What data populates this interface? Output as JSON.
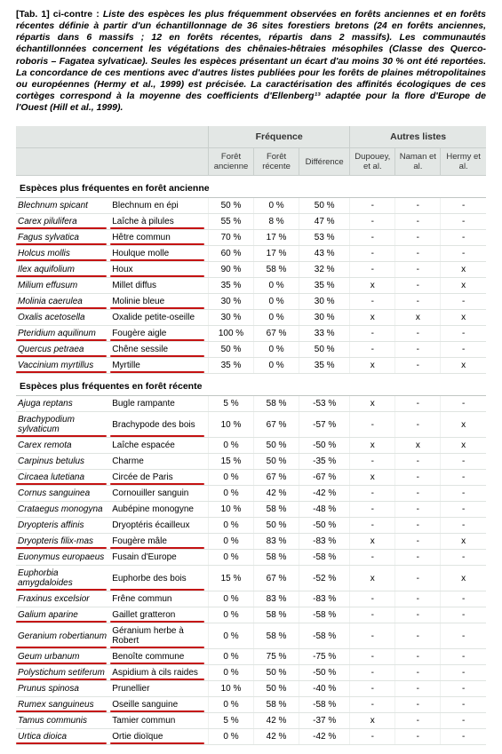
{
  "caption": {
    "lead": "[Tab. 1] ci-contre :",
    "body": "Liste des espèces les plus fréquemment observées en forêts anciennes et en forêts récentes définie à partir d'un échantillonnage de 36 sites forestiers bretons (24 en forêts anciennes, répartis dans 6 massifs ; 12 en forêts récentes, répartis dans 2 massifs). Les communautés échantillonnées concernent les végétations des chênaies-hêtraies mésophiles (Classe des Querco-roboris – Fagatea sylvaticae). Seules les espèces présentant un écart d'au moins 30 % ont été reportées. La concordance de ces mentions avec d'autres listes publiées pour les forêts de plaines métropolitaines ou européennes (Hermy et al., 1999) est précisée. La caractérisation des affinités écologiques de ces cortèges correspond à la moyenne des coefficients d'Ellenberg¹³ adaptée pour la flore d'Europe de l'Ouest (Hill et al., 1999)."
  },
  "headers": {
    "group_freq": "Fréquence",
    "group_lists": "Autres listes",
    "col_fa": "Forêt ancienne",
    "col_fr": "Forêt récente",
    "col_diff": "Différence",
    "col_dup": "Dupouey, et al.",
    "col_nam": "Naman et al.",
    "col_her": "Hermy et al."
  },
  "section1_title": "Espèces plus fréquentes en forêt ancienne",
  "section2_title": "Espèces plus fréquentes en forêt récente",
  "rows1": [
    {
      "latin": "Blechnum spicant",
      "vern": "Blechnum en épi",
      "fa": "50 %",
      "fr": "0 %",
      "diff": "50 %",
      "d": "-",
      "n": "-",
      "h": "-",
      "hl": false
    },
    {
      "latin": "Carex pilulifera",
      "vern": "Laîche à pilules",
      "fa": "55 %",
      "fr": "8 %",
      "diff": "47 %",
      "d": "-",
      "n": "-",
      "h": "-",
      "hl": true
    },
    {
      "latin": "Fagus sylvatica",
      "vern": "Hêtre commun",
      "fa": "70 %",
      "fr": "17 %",
      "diff": "53 %",
      "d": "-",
      "n": "-",
      "h": "-",
      "hl": true
    },
    {
      "latin": "Holcus mollis",
      "vern": "Houlque molle",
      "fa": "60 %",
      "fr": "17 %",
      "diff": "43 %",
      "d": "-",
      "n": "-",
      "h": "-",
      "hl": true
    },
    {
      "latin": "Ilex aquifolium",
      "vern": "Houx",
      "fa": "90 %",
      "fr": "58 %",
      "diff": "32 %",
      "d": "-",
      "n": "-",
      "h": "x",
      "hl": true
    },
    {
      "latin": "Milium effusum",
      "vern": "Millet diffus",
      "fa": "35 %",
      "fr": "0 %",
      "diff": "35 %",
      "d": "x",
      "n": "-",
      "h": "x",
      "hl": false
    },
    {
      "latin": "Molinia caerulea",
      "vern": "Molinie bleue",
      "fa": "30 %",
      "fr": "0 %",
      "diff": "30 %",
      "d": "-",
      "n": "-",
      "h": "-",
      "hl": true
    },
    {
      "latin": "Oxalis acetosella",
      "vern": "Oxalide petite-oseille",
      "fa": "30 %",
      "fr": "0 %",
      "diff": "30 %",
      "d": "x",
      "n": "x",
      "h": "x",
      "hl": false
    },
    {
      "latin": "Pteridium aquilinum",
      "vern": "Fougère aigle",
      "fa": "100 %",
      "fr": "67 %",
      "diff": "33 %",
      "d": "-",
      "n": "-",
      "h": "-",
      "hl": true
    },
    {
      "latin": "Quercus petraea",
      "vern": "Chêne sessile",
      "fa": "50 %",
      "fr": "0 %",
      "diff": "50 %",
      "d": "-",
      "n": "-",
      "h": "-",
      "hl": true
    },
    {
      "latin": "Vaccinium myrtillus",
      "vern": "Myrtille",
      "fa": "35 %",
      "fr": "0 %",
      "diff": "35 %",
      "d": "x",
      "n": "-",
      "h": "x",
      "hl": true
    }
  ],
  "rows2": [
    {
      "latin": "Ajuga reptans",
      "vern": "Bugle rampante",
      "fa": "5 %",
      "fr": "58 %",
      "diff": "-53 %",
      "d": "x",
      "n": "-",
      "h": "-",
      "hl": false
    },
    {
      "latin": "Brachypodium sylvaticum",
      "vern": "Brachypode des bois",
      "fa": "10 %",
      "fr": "67 %",
      "diff": "-57 %",
      "d": "-",
      "n": "-",
      "h": "x",
      "hl": true
    },
    {
      "latin": "Carex remota",
      "vern": "Laîche espacée",
      "fa": "0 %",
      "fr": "50 %",
      "diff": "-50 %",
      "d": "x",
      "n": "x",
      "h": "x",
      "hl": false
    },
    {
      "latin": "Carpinus betulus",
      "vern": "Charme",
      "fa": "15 %",
      "fr": "50 %",
      "diff": "-35 %",
      "d": "-",
      "n": "-",
      "h": "-",
      "hl": false
    },
    {
      "latin": "Circaea lutetiana",
      "vern": "Circée de Paris",
      "fa": "0 %",
      "fr": "67 %",
      "diff": "-67 %",
      "d": "x",
      "n": "-",
      "h": "-",
      "hl": true
    },
    {
      "latin": "Cornus sanguinea",
      "vern": "Cornouiller sanguin",
      "fa": "0 %",
      "fr": "42 %",
      "diff": "-42 %",
      "d": "-",
      "n": "-",
      "h": "-",
      "hl": false
    },
    {
      "latin": "Crataegus monogyna",
      "vern": "Aubépine monogyne",
      "fa": "10 %",
      "fr": "58 %",
      "diff": "-48 %",
      "d": "-",
      "n": "-",
      "h": "-",
      "hl": false
    },
    {
      "latin": "Dryopteris affinis",
      "vern": "Dryoptéris écailleux",
      "fa": "0 %",
      "fr": "50 %",
      "diff": "-50 %",
      "d": "-",
      "n": "-",
      "h": "-",
      "hl": false
    },
    {
      "latin": "Dryopteris filix-mas",
      "vern": "Fougère mâle",
      "fa": "0 %",
      "fr": "83 %",
      "diff": "-83 %",
      "d": "x",
      "n": "-",
      "h": "x",
      "hl": true
    },
    {
      "latin": "Euonymus europaeus",
      "vern": "Fusain d'Europe",
      "fa": "0 %",
      "fr": "58 %",
      "diff": "-58 %",
      "d": "-",
      "n": "-",
      "h": "-",
      "hl": false
    },
    {
      "latin": "Euphorbia amygdaloides",
      "vern": "Euphorbe des bois",
      "fa": "15 %",
      "fr": "67 %",
      "diff": "-52 %",
      "d": "x",
      "n": "-",
      "h": "x",
      "hl": true
    },
    {
      "latin": "Fraxinus excelsior",
      "vern": "Frêne commun",
      "fa": "0 %",
      "fr": "83 %",
      "diff": "-83 %",
      "d": "-",
      "n": "-",
      "h": "-",
      "hl": false
    },
    {
      "latin": "Galium aparine",
      "vern": "Gaillet gratteron",
      "fa": "0 %",
      "fr": "58 %",
      "diff": "-58 %",
      "d": "-",
      "n": "-",
      "h": "-",
      "hl": true
    },
    {
      "latin": "Geranium robertianum",
      "vern": "Géranium herbe à Robert",
      "fa": "0 %",
      "fr": "58 %",
      "diff": "-58 %",
      "d": "-",
      "n": "-",
      "h": "-",
      "hl": true
    },
    {
      "latin": "Geum urbanum",
      "vern": "Benoîte commune",
      "fa": "0 %",
      "fr": "75 %",
      "diff": "-75 %",
      "d": "-",
      "n": "-",
      "h": "-",
      "hl": true
    },
    {
      "latin": "Polystichum setiferum",
      "vern": "Aspidium à cils raides",
      "fa": "0 %",
      "fr": "50 %",
      "diff": "-50 %",
      "d": "-",
      "n": "-",
      "h": "-",
      "hl": true
    },
    {
      "latin": "Prunus spinosa",
      "vern": "Prunellier",
      "fa": "10 %",
      "fr": "50 %",
      "diff": "-40 %",
      "d": "-",
      "n": "-",
      "h": "-",
      "hl": false
    },
    {
      "latin": "Rumex sanguineus",
      "vern": "Oseille sanguine",
      "fa": "0 %",
      "fr": "58 %",
      "diff": "-58 %",
      "d": "-",
      "n": "-",
      "h": "-",
      "hl": true
    },
    {
      "latin": "Tamus communis",
      "vern": "Tamier commun",
      "fa": "5 %",
      "fr": "42 %",
      "diff": "-37 %",
      "d": "x",
      "n": "-",
      "h": "-",
      "hl": false
    },
    {
      "latin": "Urtica dioica",
      "vern": "Ortie dioïque",
      "fa": "0 %",
      "fr": "42 %",
      "diff": "-42 %",
      "d": "-",
      "n": "-",
      "h": "-",
      "hl": true
    }
  ]
}
